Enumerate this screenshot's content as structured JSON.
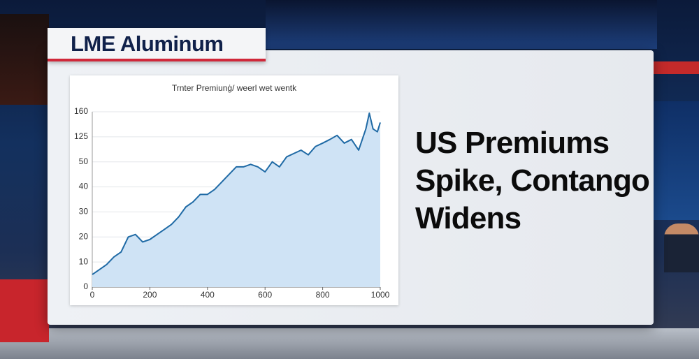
{
  "header": {
    "title": "LME Aluminum"
  },
  "headline": [
    "US Premiums",
    "Spike, Contango",
    "Widens"
  ],
  "chart_data": {
    "type": "area",
    "title": "Trnter Premiunġ/ weerl wet wentk",
    "x": [
      0,
      25,
      50,
      75,
      100,
      125,
      150,
      175,
      200,
      225,
      250,
      275,
      300,
      325,
      350,
      375,
      400,
      425,
      450,
      475,
      500,
      525,
      550,
      575,
      600,
      625,
      650,
      675,
      700,
      725,
      750,
      775,
      800,
      825,
      850,
      875,
      900,
      925,
      950,
      962,
      975,
      990,
      1000
    ],
    "series": [
      {
        "color": "#1f6aa5",
        "fill": "#cfe3f5",
        "values": [
          5,
          7,
          9,
          12,
          14,
          20,
          21,
          18,
          19,
          21,
          23,
          25,
          28,
          32,
          34,
          37,
          37,
          39,
          42,
          45,
          48,
          48,
          49,
          48,
          46,
          50,
          48,
          65,
          75,
          85,
          71,
          96,
          106,
          117,
          127,
          106,
          117,
          85,
          136,
          158,
          136,
          132,
          145
        ]
      }
    ],
    "xlim": [
      0,
      1000
    ],
    "xticks": [
      0,
      200,
      400,
      600,
      800,
      1000
    ],
    "ylim": [
      0,
      160
    ],
    "yticks": [
      0,
      10,
      20,
      30,
      40,
      50,
      125,
      160
    ],
    "grid": true
  }
}
